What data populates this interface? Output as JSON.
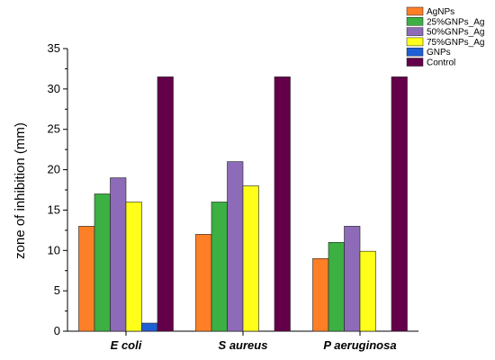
{
  "chart_data": {
    "type": "bar",
    "title": "",
    "xlabel": "",
    "ylabel": "zone of inhibition (mm)",
    "ylim": [
      0,
      35
    ],
    "yticks": [
      0,
      5,
      10,
      15,
      20,
      25,
      30,
      35
    ],
    "grid": false,
    "legend_position": "top-right",
    "categories": [
      "E coli",
      "S aureus",
      "P aeruginosa"
    ],
    "series": [
      {
        "name": "AgNPs",
        "color": "#ff7f27",
        "values": [
          13,
          12,
          9
        ]
      },
      {
        "name": "25%GNPs_Ag",
        "color": "#3cb043",
        "values": [
          17,
          16,
          11
        ]
      },
      {
        "name": "50%GNPs_Ag",
        "color": "#8e6bb8",
        "values": [
          19,
          21,
          13
        ]
      },
      {
        "name": "75%GNPs_Ag",
        "color": "#ffff1a",
        "values": [
          16,
          18,
          9.9
        ]
      },
      {
        "name": "GNPs",
        "color": "#1f5fd6",
        "values": [
          1,
          0,
          0
        ]
      },
      {
        "name": "Control",
        "color": "#64004a",
        "values": [
          31.5,
          31.5,
          31.5
        ]
      }
    ]
  }
}
